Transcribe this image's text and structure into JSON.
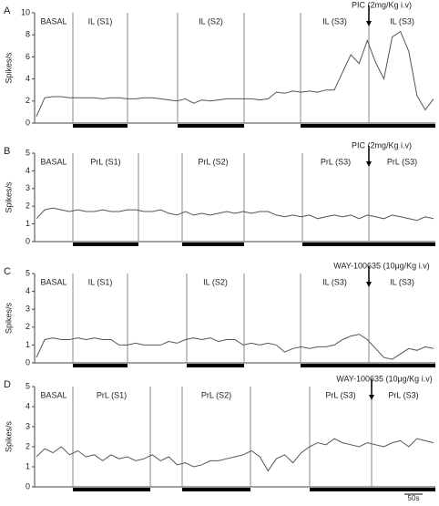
{
  "chart_data": [
    {
      "type": "line",
      "panel_label": "A",
      "ylabel": "Spikes/s",
      "annotation": "PIC (2mg/Kg i.v)",
      "color": "#555555",
      "ylim": [
        0,
        10
      ],
      "yticks": [
        0,
        2,
        4,
        6,
        8,
        10
      ],
      "segments": [
        "BASAL",
        "IL (S1)",
        null,
        "IL (S2)",
        null,
        "IL (S3)",
        "IL (S3)"
      ],
      "values": [
        0.6,
        2.3,
        2.4,
        2.4,
        2.3,
        2.3,
        2.3,
        2.3,
        2.2,
        2.3,
        2.3,
        2.2,
        2.2,
        2.3,
        2.3,
        2.2,
        2.1,
        2.0,
        2.2,
        1.8,
        2.1,
        2.0,
        2.1,
        2.2,
        2.2,
        2.2,
        2.2,
        2.1,
        2.2,
        2.8,
        2.7,
        2.9,
        2.8,
        2.9,
        2.8,
        3.0,
        3.0,
        4.6,
        6.2,
        5.4,
        7.5,
        5.5,
        4.0,
        7.8,
        8.3,
        6.5,
        2.5,
        1.2,
        2.2
      ]
    },
    {
      "type": "line",
      "panel_label": "B",
      "ylabel": "Spikes/s",
      "annotation": "PIC (2mg/Kg i.v)",
      "color": "#555555",
      "ylim": [
        0,
        5
      ],
      "yticks": [
        0,
        1,
        2,
        3,
        4,
        5
      ],
      "segments": [
        "BASAL",
        "PrL (S1)",
        null,
        "PrL (S2)",
        null,
        "PrL (S3)",
        "PrL (S3)"
      ],
      "values": [
        1.3,
        1.8,
        1.9,
        1.8,
        1.7,
        1.8,
        1.7,
        1.7,
        1.8,
        1.7,
        1.7,
        1.8,
        1.8,
        1.7,
        1.7,
        1.8,
        1.6,
        1.5,
        1.7,
        1.5,
        1.6,
        1.5,
        1.6,
        1.7,
        1.6,
        1.7,
        1.6,
        1.7,
        1.7,
        1.5,
        1.4,
        1.5,
        1.4,
        1.5,
        1.3,
        1.4,
        1.5,
        1.4,
        1.5,
        1.3,
        1.5,
        1.4,
        1.3,
        1.5,
        1.4,
        1.3,
        1.2,
        1.4,
        1.3
      ]
    },
    {
      "type": "line",
      "panel_label": "C",
      "ylabel": "Spikes/s",
      "annotation": "WAY-100635 (10μg/Kg i.v)",
      "color": "#555555",
      "ylim": [
        0,
        5
      ],
      "yticks": [
        0,
        1,
        2,
        3,
        4,
        5
      ],
      "segments": [
        "BASAL",
        "IL (S1)",
        null,
        "IL (S2)",
        null,
        "IL (S3)",
        "IL (S3)"
      ],
      "values": [
        0.3,
        1.3,
        1.4,
        1.3,
        1.3,
        1.4,
        1.3,
        1.4,
        1.3,
        1.3,
        1.0,
        1.0,
        1.1,
        1.0,
        1.0,
        1.0,
        1.2,
        1.1,
        1.3,
        1.4,
        1.3,
        1.4,
        1.2,
        1.3,
        1.3,
        1.0,
        1.1,
        1.0,
        1.1,
        1.0,
        0.6,
        0.8,
        0.9,
        0.8,
        0.9,
        0.9,
        1.0,
        1.3,
        1.5,
        1.6,
        1.3,
        0.8,
        0.3,
        0.2,
        0.5,
        0.8,
        0.7,
        0.9,
        0.8
      ]
    },
    {
      "type": "line",
      "panel_label": "D",
      "ylabel": "Spikes/s",
      "annotation": "WAY-100635 (10μg/Kg i.v)",
      "scale_bar": "50s",
      "color": "#555555",
      "ylim": [
        0,
        5
      ],
      "yticks": [
        0,
        1,
        2,
        3,
        4,
        5
      ],
      "segments": [
        "BASAL",
        "PrL (S1)",
        null,
        "PrL (S2)",
        null,
        "PrL (S3)",
        "PrL (S3)"
      ],
      "values": [
        1.5,
        1.9,
        1.7,
        2.0,
        1.6,
        1.8,
        1.5,
        1.6,
        1.3,
        1.6,
        1.4,
        1.5,
        1.3,
        1.4,
        1.6,
        1.3,
        1.5,
        1.1,
        1.2,
        1.0,
        1.1,
        1.3,
        1.3,
        1.4,
        1.5,
        1.6,
        1.8,
        1.5,
        0.8,
        1.4,
        1.6,
        1.2,
        1.7,
        2.0,
        2.2,
        2.1,
        2.4,
        2.2,
        2.1,
        2.0,
        2.2,
        2.1,
        2.0,
        2.2,
        2.3,
        2.0,
        2.4,
        2.3,
        2.2
      ]
    }
  ]
}
